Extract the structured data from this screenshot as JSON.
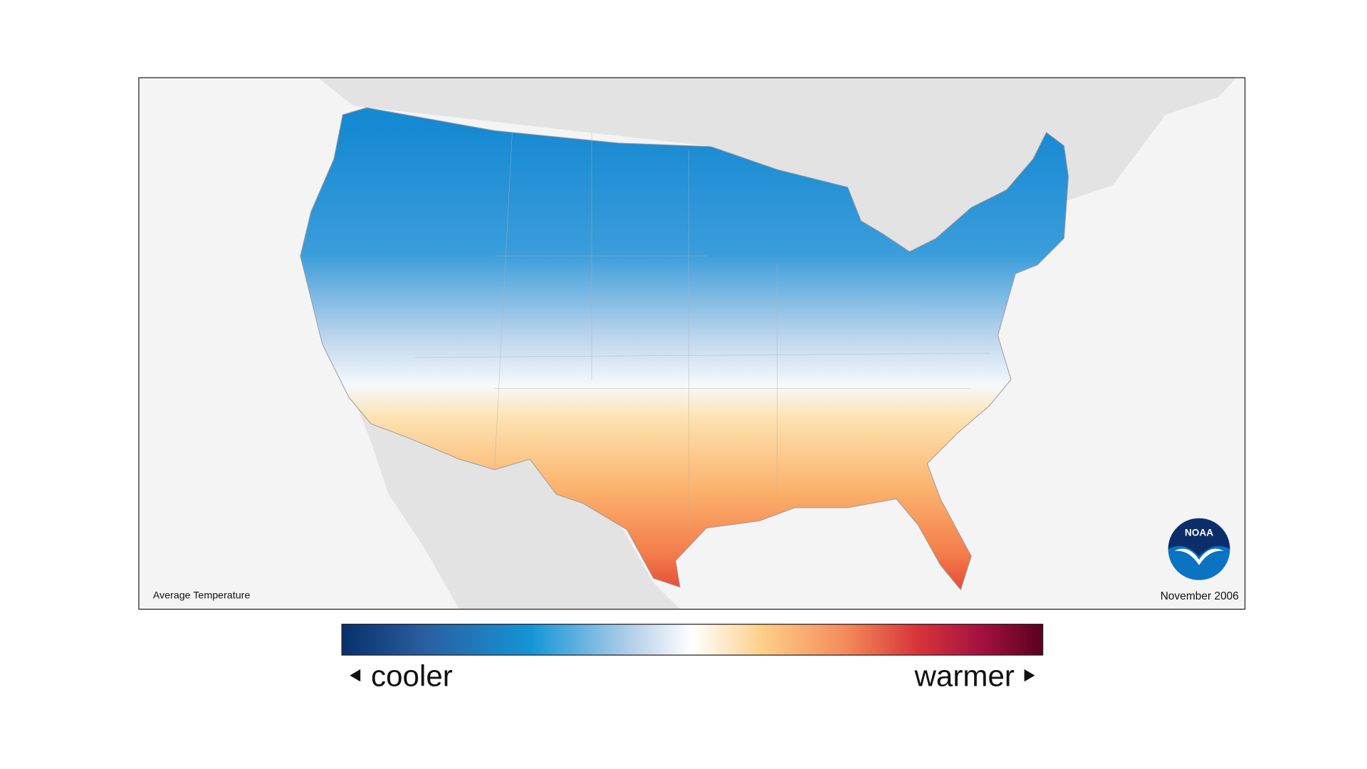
{
  "map": {
    "caption": "Average Temperature",
    "date": "November 2006"
  },
  "legend": {
    "low_label": "cooler",
    "high_label": "warmer"
  },
  "logo": {
    "text": "NOAA"
  }
}
